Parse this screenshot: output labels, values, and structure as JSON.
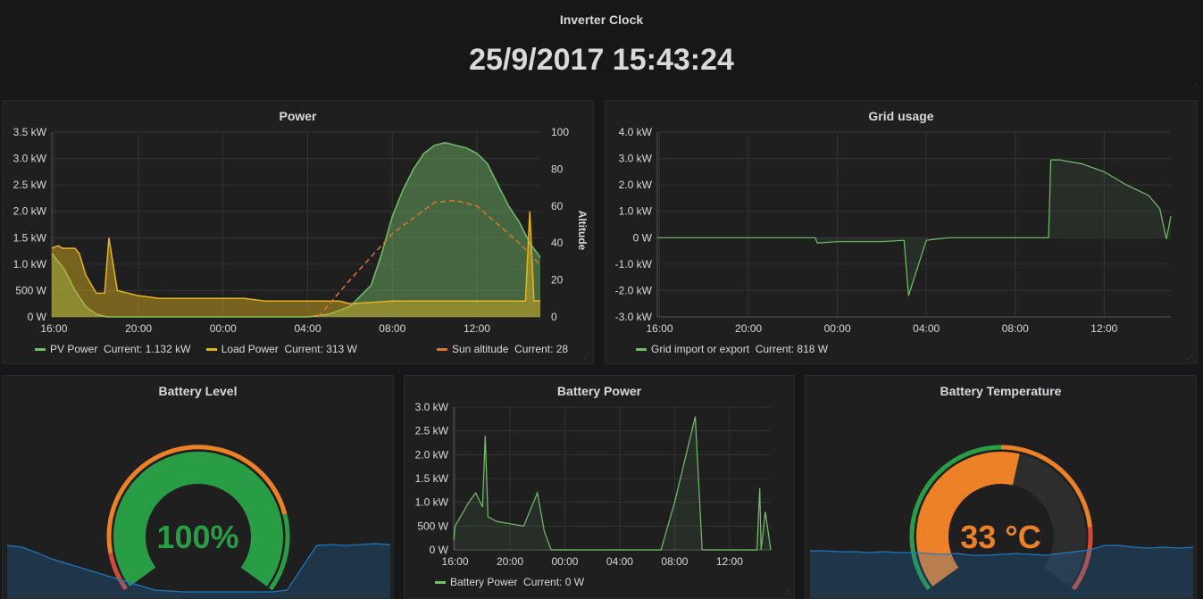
{
  "clock": {
    "title": "Inverter Clock",
    "value": "25/9/2017 15:43:24"
  },
  "colors": {
    "pv": "#73bf69",
    "load": "#e5b41f",
    "sun": "#e0752d",
    "grid": "#6ed0a0",
    "battery": "#7eb26d",
    "gaugeGreen": "#299c46",
    "gaugeOrange": "#ed8128",
    "gaugeRed": "#d44a3a",
    "spark": "#1f78c1"
  },
  "power": {
    "title": "Power",
    "legend": [
      {
        "name": "PV Power",
        "current": "Current: 1.132 kW"
      },
      {
        "name": "Load Power",
        "current": "Current: 313 W"
      },
      {
        "name": "Sun altitude",
        "current": "Current: 28"
      }
    ],
    "right_axis_label": "Altitude"
  },
  "grid": {
    "title": "Grid usage",
    "legend": [
      {
        "name": "Grid import or export",
        "current": "Current: 818 W"
      }
    ]
  },
  "battery_level": {
    "title": "Battery Level",
    "value": "100%"
  },
  "battery_power": {
    "title": "Battery Power",
    "legend": [
      {
        "name": "Battery Power",
        "current": "Current: 0 W"
      }
    ]
  },
  "battery_temp": {
    "title": "Battery Temperature",
    "value": "33 °C"
  },
  "chart_data": [
    {
      "type": "area",
      "title": "Power",
      "x_ticks": [
        "16:00",
        "20:00",
        "00:00",
        "04:00",
        "08:00",
        "12:00"
      ],
      "y_ticks": [
        "0 W",
        "500 W",
        "1.0 kW",
        "1.5 kW",
        "2.0 kW",
        "2.5 kW",
        "3.0 kW",
        "3.5 kW"
      ],
      "y2_ticks": [
        "0",
        "20",
        "40",
        "60",
        "80",
        "100"
      ],
      "y2label": "Altitude",
      "ylim": [
        0,
        3.5
      ],
      "y2lim": [
        0,
        100
      ],
      "xlim": [
        15.9,
        39.0
      ],
      "series": [
        {
          "name": "PV Power",
          "x": [
            15.9,
            16.5,
            17.0,
            17.5,
            18.0,
            18.5,
            19.0,
            20.0,
            22.0,
            24.0,
            28.0,
            29.0,
            30.0,
            31.0,
            31.5,
            32.0,
            32.5,
            33.0,
            33.5,
            34.0,
            34.5,
            35.0,
            35.5,
            36.0,
            36.5,
            37.0,
            37.5,
            38.0,
            38.5,
            39.0
          ],
          "y": [
            1.2,
            0.9,
            0.5,
            0.2,
            0.05,
            0.0,
            0.0,
            0.0,
            0.0,
            0.0,
            0.0,
            0.05,
            0.2,
            0.6,
            1.2,
            1.9,
            2.4,
            2.8,
            3.1,
            3.25,
            3.3,
            3.25,
            3.2,
            3.1,
            2.9,
            2.5,
            2.1,
            1.8,
            1.4,
            1.13
          ]
        },
        {
          "name": "Load Power",
          "x": [
            15.9,
            16.2,
            16.4,
            17.0,
            17.2,
            17.5,
            18.0,
            18.4,
            18.6,
            19.0,
            20.0,
            21.0,
            22.0,
            23.0,
            24.0,
            25.0,
            26.0,
            27.0,
            28.0,
            29.0,
            29.5,
            30.0,
            32.0,
            34.0,
            36.0,
            38.0,
            38.3,
            38.5,
            38.7,
            39.0
          ],
          "y": [
            1.3,
            1.35,
            1.3,
            1.3,
            1.2,
            0.8,
            0.45,
            0.45,
            1.5,
            0.5,
            0.4,
            0.35,
            0.35,
            0.35,
            0.35,
            0.35,
            0.3,
            0.3,
            0.3,
            0.3,
            0.3,
            0.25,
            0.3,
            0.3,
            0.3,
            0.3,
            0.3,
            2.0,
            0.3,
            0.31
          ]
        },
        {
          "name": "Sun altitude",
          "x": [
            28.5,
            30.0,
            32.0,
            34.0,
            35.0,
            36.0,
            38.0,
            39.0
          ],
          "y": [
            0,
            20,
            45,
            62,
            63,
            60,
            40,
            28
          ]
        }
      ]
    },
    {
      "type": "line",
      "title": "Grid usage",
      "x_ticks": [
        "16:00",
        "20:00",
        "00:00",
        "04:00",
        "08:00",
        "12:00"
      ],
      "y_ticks": [
        "-3.0 kW",
        "-2.0 kW",
        "-1.0 kW",
        "0 W",
        "1.0 kW",
        "2.0 kW",
        "3.0 kW",
        "4.0 kW"
      ],
      "ylim": [
        -3.0,
        4.0
      ],
      "xlim": [
        15.9,
        39.0
      ],
      "series": [
        {
          "name": "Grid import or export",
          "x": [
            15.9,
            20.0,
            23.0,
            23.1,
            24.0,
            26.0,
            27.0,
            27.2,
            28.0,
            29.0,
            30.0,
            31.0,
            33.5,
            33.6,
            34.0,
            35.0,
            36.0,
            37.0,
            38.0,
            38.5,
            38.8,
            39.0
          ],
          "y": [
            0.0,
            0.0,
            0.0,
            -0.2,
            -0.15,
            -0.15,
            -0.1,
            -2.2,
            -0.1,
            0.0,
            0.0,
            0.0,
            0.0,
            2.95,
            2.95,
            2.8,
            2.5,
            2.0,
            1.6,
            1.1,
            -0.05,
            0.82
          ]
        }
      ]
    },
    {
      "type": "line",
      "title": "Battery Power",
      "x_ticks": [
        "16:00",
        "20:00",
        "00:00",
        "04:00",
        "08:00",
        "12:00"
      ],
      "y_ticks": [
        "0 W",
        "500 W",
        "1.0 kW",
        "1.5 kW",
        "2.0 kW",
        "2.5 kW",
        "3.0 kW"
      ],
      "ylim": [
        0,
        3.0
      ],
      "xlim": [
        15.9,
        39.0
      ],
      "series": [
        {
          "name": "Battery Power",
          "x": [
            15.9,
            16.0,
            17.0,
            17.5,
            18.0,
            18.2,
            18.4,
            19.0,
            20.0,
            21.0,
            22.0,
            22.5,
            23.0,
            23.5,
            25.0,
            26.0,
            28.0,
            30.0,
            31.0,
            32.0,
            33.0,
            33.5,
            34.0,
            36.0,
            38.0,
            38.2,
            38.3,
            38.6,
            39.0
          ],
          "y": [
            0.2,
            0.5,
            1.0,
            1.2,
            0.9,
            2.4,
            0.7,
            0.6,
            0.55,
            0.5,
            1.2,
            0.4,
            0.0,
            0.0,
            0.0,
            0.0,
            0.0,
            0.0,
            0.0,
            1.0,
            2.2,
            2.8,
            0.0,
            0.0,
            0.0,
            1.3,
            0.0,
            0.8,
            0.0
          ]
        }
      ]
    },
    {
      "type": "gauge",
      "title": "Battery Level",
      "value": 100,
      "unit": "%",
      "min": 0,
      "max": 100
    },
    {
      "type": "gauge",
      "title": "Battery Temperature",
      "value": 33,
      "unit": "°C",
      "min": 0,
      "max": 60
    }
  ]
}
